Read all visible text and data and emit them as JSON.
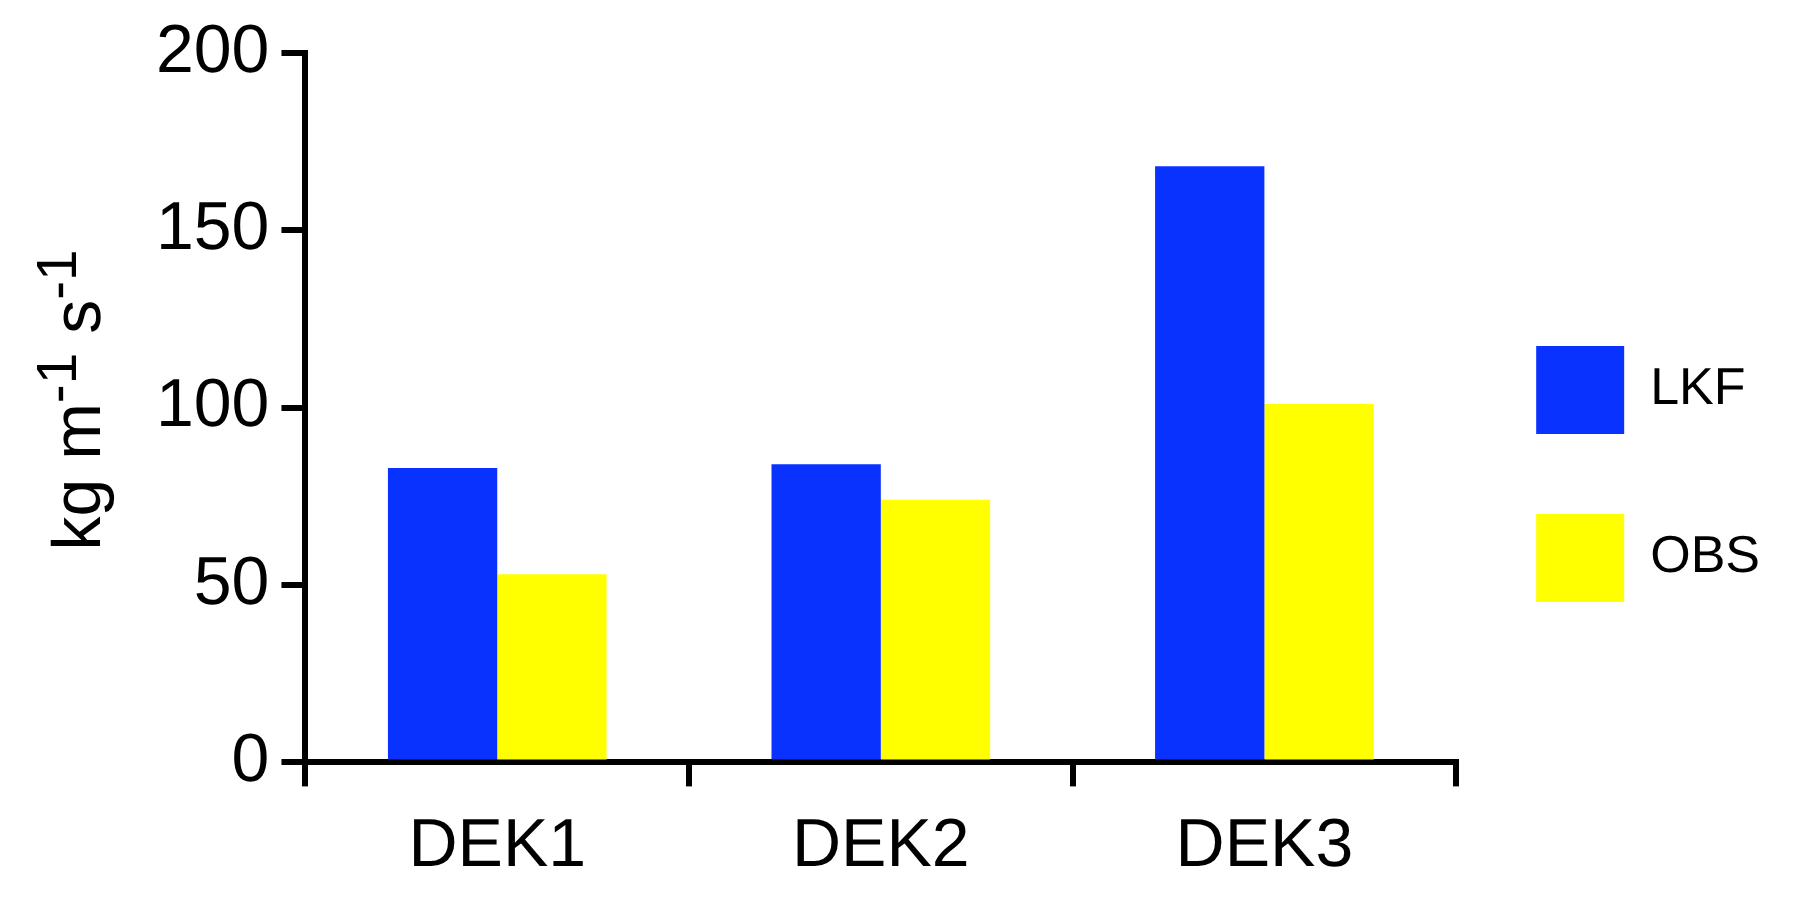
{
  "chart_data": {
    "type": "bar",
    "ylabel": "kg m$^{-1}$ s$^{-1}$",
    "categories": [
      "DEK1",
      "DEK2",
      "DEK3"
    ],
    "series": [
      {
        "name": "LKF",
        "color": "#0a32ff",
        "values": [
          83,
          84,
          168
        ]
      },
      {
        "name": "OBS",
        "color": "#ffff00",
        "values": [
          53,
          74,
          101
        ]
      }
    ],
    "ylim": [
      0,
      200
    ],
    "yticks": [
      0,
      50,
      100,
      150,
      200
    ],
    "grid": false,
    "legend": "right"
  }
}
